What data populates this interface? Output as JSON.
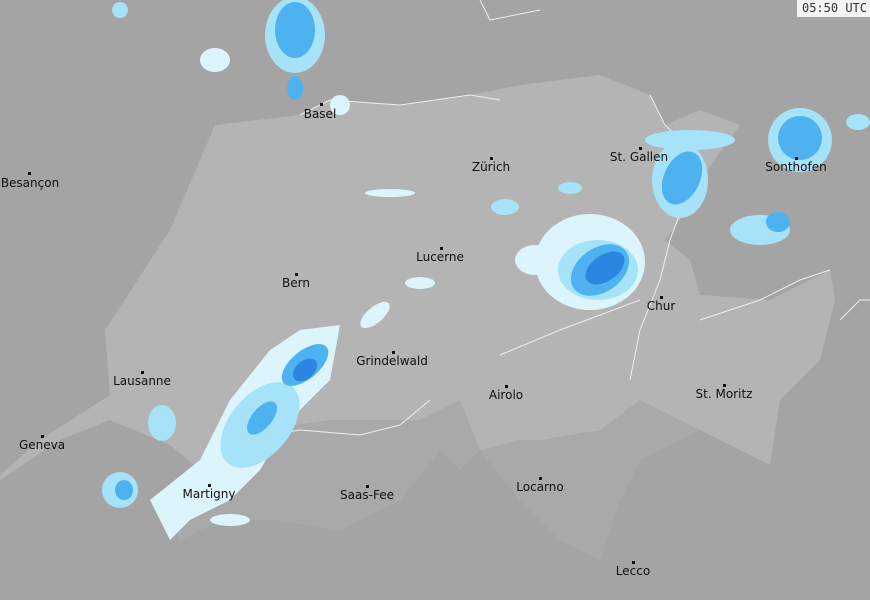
{
  "timestamp": "05:50 UTC",
  "colors": {
    "background": "#a4a4a4",
    "country": "#b4b4b4",
    "mountain": "#a9a9a9",
    "precip_light": "#dcf4fc",
    "precip_low": "#a6e2f8",
    "precip_mid": "#4fb2f0",
    "precip_high": "#2a86e0"
  },
  "cities": [
    {
      "name": "Basel"
    },
    {
      "name": "Besançon"
    },
    {
      "name": "Zürich"
    },
    {
      "name": "St. Gallen"
    },
    {
      "name": "Sonthofen"
    },
    {
      "name": "Lucerne"
    },
    {
      "name": "Bern"
    },
    {
      "name": "Chur"
    },
    {
      "name": "Grindelwald"
    },
    {
      "name": "Lausanne"
    },
    {
      "name": "Airolo"
    },
    {
      "name": "St. Moritz"
    },
    {
      "name": "Geneva"
    },
    {
      "name": "Martigny"
    },
    {
      "name": "Saas-Fee"
    },
    {
      "name": "Locarno"
    },
    {
      "name": "Lecco"
    }
  ]
}
